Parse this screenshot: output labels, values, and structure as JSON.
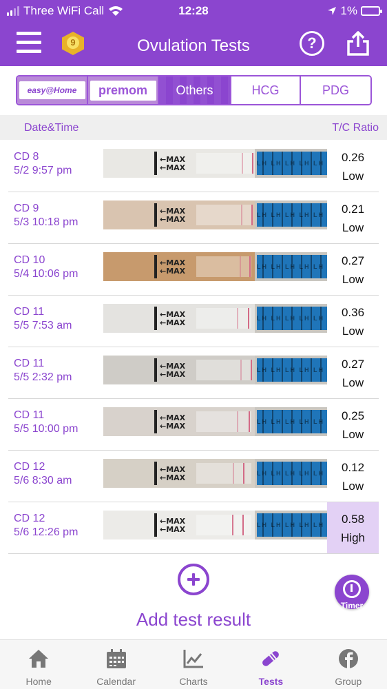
{
  "status_bar": {
    "carrier": "Three WiFi Call",
    "time": "12:28",
    "battery": "1%"
  },
  "header": {
    "title": "Ovulation Tests",
    "badge_count": "9",
    "icons": [
      "menu-icon",
      "badge-icon",
      "help-icon",
      "share-icon"
    ]
  },
  "brand_tabs": {
    "easy_home": "easy@Home",
    "premom": "premom",
    "others": "Others",
    "hcg": "HCG",
    "pdg": "PDG"
  },
  "columns": {
    "datetime": "Date&Time",
    "ratio": "T/C Ratio"
  },
  "strip_text": {
    "max": "MAX",
    "lh": "LH LH LH LH LH"
  },
  "rows": [
    {
      "cd": "CD 8",
      "datetime": "5/2 9:57 pm",
      "ratio": "0.26",
      "level": "Low"
    },
    {
      "cd": "CD 9",
      "datetime": "5/3 10:18 pm",
      "ratio": "0.21",
      "level": "Low"
    },
    {
      "cd": "CD 10",
      "datetime": "5/4 10:06 pm",
      "ratio": "0.27",
      "level": "Low"
    },
    {
      "cd": "CD 11",
      "datetime": "5/5 7:53 am",
      "ratio": "0.36",
      "level": "Low"
    },
    {
      "cd": "CD 11",
      "datetime": "5/5 2:32 pm",
      "ratio": "0.27",
      "level": "Low"
    },
    {
      "cd": "CD 11",
      "datetime": "5/5 10:00 pm",
      "ratio": "0.25",
      "level": "Low"
    },
    {
      "cd": "CD 12",
      "datetime": "5/6 8:30 am",
      "ratio": "0.12",
      "level": "Low"
    },
    {
      "cd": "CD 12",
      "datetime": "5/6 12:26 pm",
      "ratio": "0.58",
      "level": "High"
    }
  ],
  "add_result": "Add test result",
  "timer_label": "Timer",
  "nav": {
    "home": "Home",
    "calendar": "Calendar",
    "charts": "Charts",
    "tests": "Tests",
    "group": "Group"
  },
  "colors": {
    "brand": "#8b45cf",
    "highlight": "#e3d1f5",
    "lh_blue": "#1f75b9"
  }
}
